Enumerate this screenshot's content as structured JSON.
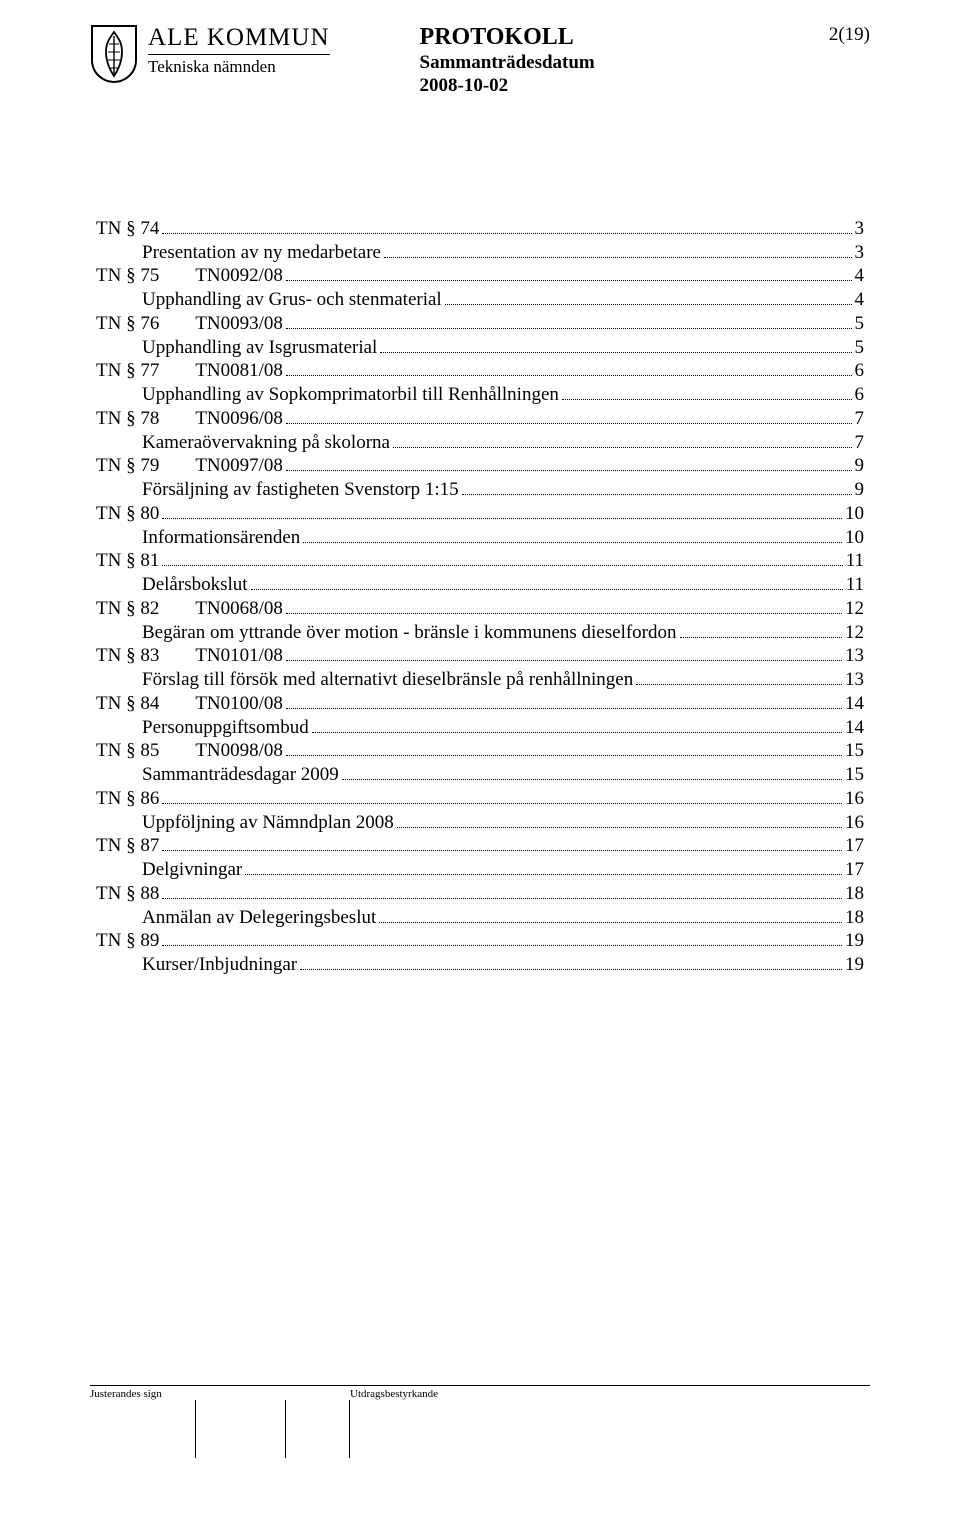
{
  "header": {
    "org_name": "ALE KOMMUN",
    "dept_name": "Tekniska nämnden",
    "title": "PROTOKOLL",
    "subtitle": "Sammanträdesdatum",
    "date": "2008-10-02",
    "page_info": "2(19)"
  },
  "toc": [
    {
      "type": "item",
      "num": "TN § 74",
      "code": "",
      "page": "3"
    },
    {
      "type": "desc",
      "text": "Presentation av ny medarbetare",
      "page": "3"
    },
    {
      "type": "item",
      "num": "TN § 75",
      "code": "TN0092/08",
      "page": "4"
    },
    {
      "type": "desc",
      "text": "Upphandling av Grus- och stenmaterial",
      "page": "4"
    },
    {
      "type": "item",
      "num": "TN § 76",
      "code": "TN0093/08",
      "page": "5"
    },
    {
      "type": "desc",
      "text": "Upphandling av Isgrusmaterial",
      "page": "5"
    },
    {
      "type": "item",
      "num": "TN § 77",
      "code": "TN0081/08",
      "page": "6"
    },
    {
      "type": "desc",
      "text": "Upphandling av Sopkomprimatorbil till Renhållningen",
      "page": "6"
    },
    {
      "type": "item",
      "num": "TN § 78",
      "code": "TN0096/08",
      "page": "7"
    },
    {
      "type": "desc",
      "text": "Kameraövervakning på skolorna",
      "page": "7"
    },
    {
      "type": "item",
      "num": "TN § 79",
      "code": "TN0097/08",
      "page": "9"
    },
    {
      "type": "desc",
      "text": "Försäljning av fastigheten Svenstorp 1:15",
      "page": "9"
    },
    {
      "type": "item",
      "num": "TN § 80",
      "code": "",
      "page": "10"
    },
    {
      "type": "desc",
      "text": "Informationsärenden",
      "page": "10"
    },
    {
      "type": "item",
      "num": "TN § 81",
      "code": "",
      "page": "11"
    },
    {
      "type": "desc",
      "text": "Delårsbokslut",
      "page": "11"
    },
    {
      "type": "item",
      "num": "TN § 82",
      "code": "TN0068/08",
      "page": "12"
    },
    {
      "type": "desc",
      "text": "Begäran om yttrande över motion - bränsle i kommunens dieselfordon",
      "page": "12"
    },
    {
      "type": "item",
      "num": "TN § 83",
      "code": "TN0101/08",
      "page": "13"
    },
    {
      "type": "desc",
      "text": "Förslag till försök med alternativt dieselbränsle på renhållningen",
      "page": "13"
    },
    {
      "type": "item",
      "num": "TN § 84",
      "code": "TN0100/08",
      "page": "14"
    },
    {
      "type": "desc",
      "text": "Personuppgiftsombud",
      "page": "14"
    },
    {
      "type": "item",
      "num": "TN § 85",
      "code": "TN0098/08",
      "page": "15"
    },
    {
      "type": "desc",
      "text": "Sammanträdesdagar 2009",
      "page": "15"
    },
    {
      "type": "item",
      "num": "TN § 86",
      "code": "",
      "page": "16"
    },
    {
      "type": "desc",
      "text": "Uppföljning av Nämndplan 2008",
      "page": "16"
    },
    {
      "type": "item",
      "num": "TN § 87",
      "code": "",
      "page": "17"
    },
    {
      "type": "desc",
      "text": "Delgivningar",
      "page": "17"
    },
    {
      "type": "item",
      "num": "TN § 88",
      "code": "",
      "page": "18"
    },
    {
      "type": "desc",
      "text": "Anmälan av Delegeringsbeslut",
      "page": "18"
    },
    {
      "type": "item",
      "num": "TN § 89",
      "code": "",
      "page": "19"
    },
    {
      "type": "desc",
      "text": "Kurser/Inbjudningar",
      "page": "19"
    }
  ],
  "footer": {
    "left": "Justerandes sign",
    "right": "Utdragsbestyrkande"
  }
}
